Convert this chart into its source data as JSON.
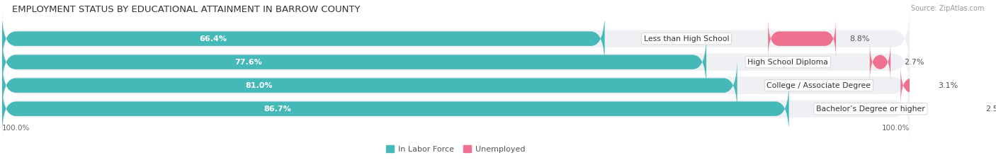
{
  "title": "EMPLOYMENT STATUS BY EDUCATIONAL ATTAINMENT IN BARROW COUNTY",
  "source": "Source: ZipAtlas.com",
  "categories": [
    "Less than High School",
    "High School Diploma",
    "College / Associate Degree",
    "Bachelor’s Degree or higher"
  ],
  "in_labor_force": [
    66.4,
    77.6,
    81.0,
    86.7
  ],
  "unemployed": [
    8.8,
    2.7,
    3.1,
    2.5
  ],
  "labor_color": "#45b8b8",
  "unemployed_color": "#f07090",
  "bg_row_color": "#eef0f4",
  "bar_height": 0.62,
  "total_width": 100.0,
  "x_left_label": "100.0%",
  "x_right_label": "100.0%",
  "legend_labor": "In Labor Force",
  "legend_unemployed": "Unemployed",
  "title_fontsize": 9.5,
  "label_fontsize": 8.0,
  "cat_fontsize": 7.8,
  "tick_fontsize": 7.5,
  "source_fontsize": 7.0
}
